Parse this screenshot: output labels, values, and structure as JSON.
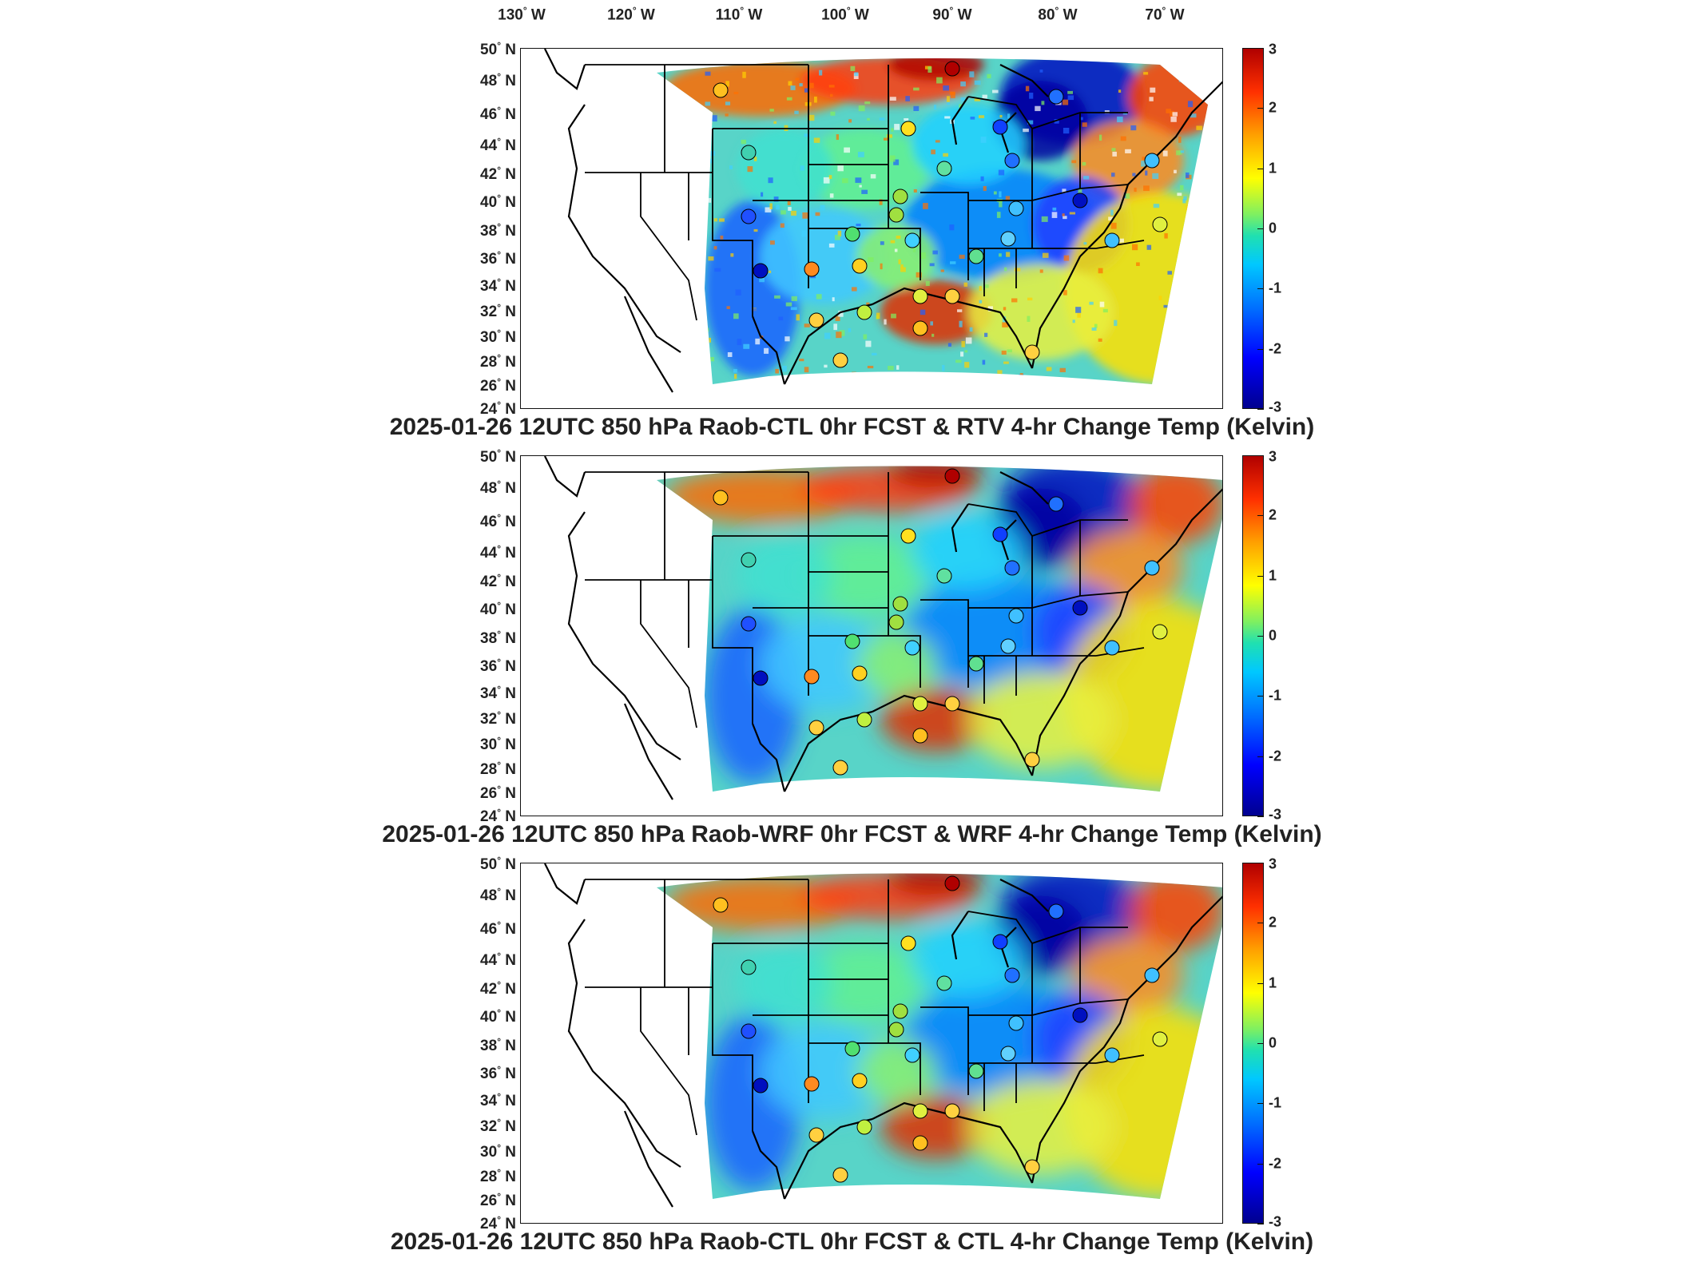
{
  "lon_ticks": [
    "130",
    "120",
    "110",
    "100",
    "90",
    "80",
    "70"
  ],
  "lon_suffix": "W",
  "lat_ticks": [
    "50",
    "48",
    "46",
    "44",
    "42",
    "40",
    "38",
    "36",
    "34",
    "32",
    "30",
    "28",
    "26",
    "24"
  ],
  "lat_suffix": "N",
  "degree_symbol": "°",
  "colorbar": {
    "ticks": [
      "3",
      "2",
      "1",
      "0",
      "-1",
      "-2",
      "-3"
    ],
    "range": [
      -3,
      3
    ],
    "colors": [
      "#00008f",
      "#0000ff",
      "#0070ff",
      "#00c8ff",
      "#80f060",
      "#ffff00",
      "#ffa000",
      "#ff3000",
      "#b00000"
    ]
  },
  "panels": [
    {
      "title": "2025-01-26 12UTC 850 hPa Raob-CTL 0hr FCST & RTV 4-hr Change Temp (Kelvin)"
    },
    {
      "title": "2025-01-26 12UTC 850 hPa Raob-WRF 0hr FCST & WRF 4-hr Change Temp (Kelvin)"
    },
    {
      "title": "2025-01-26 12UTC 850 hPa Raob-CTL 0hr FCST & CTL 4-hr Change Temp (Kelvin)"
    }
  ]
}
